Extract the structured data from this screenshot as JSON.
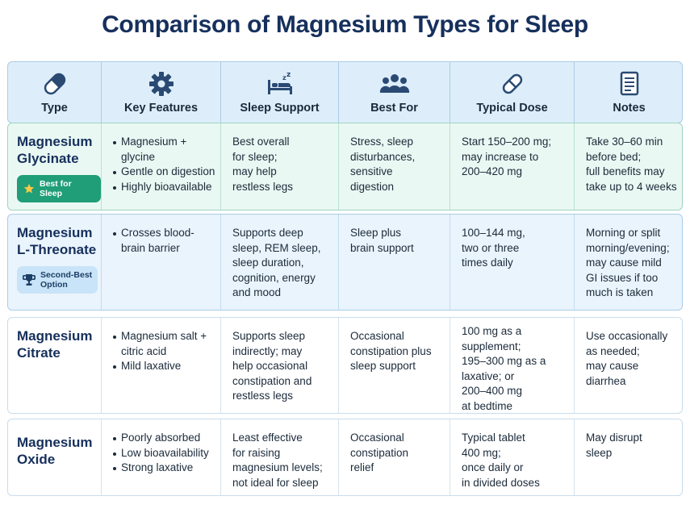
{
  "title": "Comparison of Magnesium Types for Sleep",
  "header": {
    "columns": [
      {
        "label": "Type",
        "icon": "capsule-icon"
      },
      {
        "label": "Key Features",
        "icon": "gear-icon"
      },
      {
        "label": "Sleep Support",
        "icon": "bed-icon"
      },
      {
        "label": "Best For",
        "icon": "people-icon"
      },
      {
        "label": "Typical Dose",
        "icon": "pill-icon"
      },
      {
        "label": "Notes",
        "icon": "document-icon"
      }
    ]
  },
  "colors": {
    "title": "#16305c",
    "header_bg": "#ddeefa",
    "icon": "#2a4a73",
    "best_badge": "#1f9e77",
    "second_badge": "#c9e4f8"
  },
  "rows": [
    {
      "name_line1": "Magnesium",
      "name_line2": "Glycinate",
      "badge": "Best for Sleep",
      "features": [
        "Magnesium +\nglycine",
        "Gentle on digestion",
        "Highly bioavailable"
      ],
      "sleep_support": "Best overall\nfor sleep;\nmay help\nrestless legs",
      "best_for": "Stress, sleep\ndisturbances,\nsensitive\ndigestion",
      "dose": "Start 150–200 mg;\nmay increase to\n200–420 mg",
      "notes": "Take 30–60 min\nbefore bed;\nfull benefits may\ntake up to 4 weeks"
    },
    {
      "name_line1": "Magnesium",
      "name_line2": "L-Threonate",
      "badge_line1": "Second-Best",
      "badge_line2": "Option",
      "features": [
        "Crosses blood-\nbrain barrier"
      ],
      "sleep_support": "Supports deep\nsleep, REM sleep,\nsleep duration,\ncognition, energy\nand mood",
      "best_for": "Sleep plus\nbrain support",
      "dose": "100–144 mg,\ntwo or three\ntimes daily",
      "notes": "Morning or split\nmorning/evening;\nmay cause mild\nGI issues if too\nmuch is taken"
    },
    {
      "name_line1": "Magnesium",
      "name_line2": "Citrate",
      "features": [
        "Magnesium salt +\ncitric acid",
        "Mild laxative"
      ],
      "sleep_support": "Supports sleep\nindirectly; may\nhelp occasional\nconstipation and\nrestless legs",
      "best_for": "Occasional\nconstipation plus\nsleep support",
      "dose": "100 mg as a\nsupplement;\n195–300 mg as a\nlaxative; or\n200–400 mg\nat bedtime",
      "notes": "Use occasionally\nas needed;\nmay cause\ndiarrhea"
    },
    {
      "name_line1": "Magnesium",
      "name_line2": "Oxide",
      "features": [
        "Poorly absorbed",
        "Low bioavailability",
        "Strong laxative"
      ],
      "sleep_support": "Least effective\nfor raising\nmagnesium levels;\nnot ideal for sleep",
      "best_for": "Occasional\nconstipation\nrelief",
      "dose": "Typical tablet\n400 mg;\nonce daily or\nin divided doses",
      "notes": "May disrupt\nsleep"
    }
  ]
}
